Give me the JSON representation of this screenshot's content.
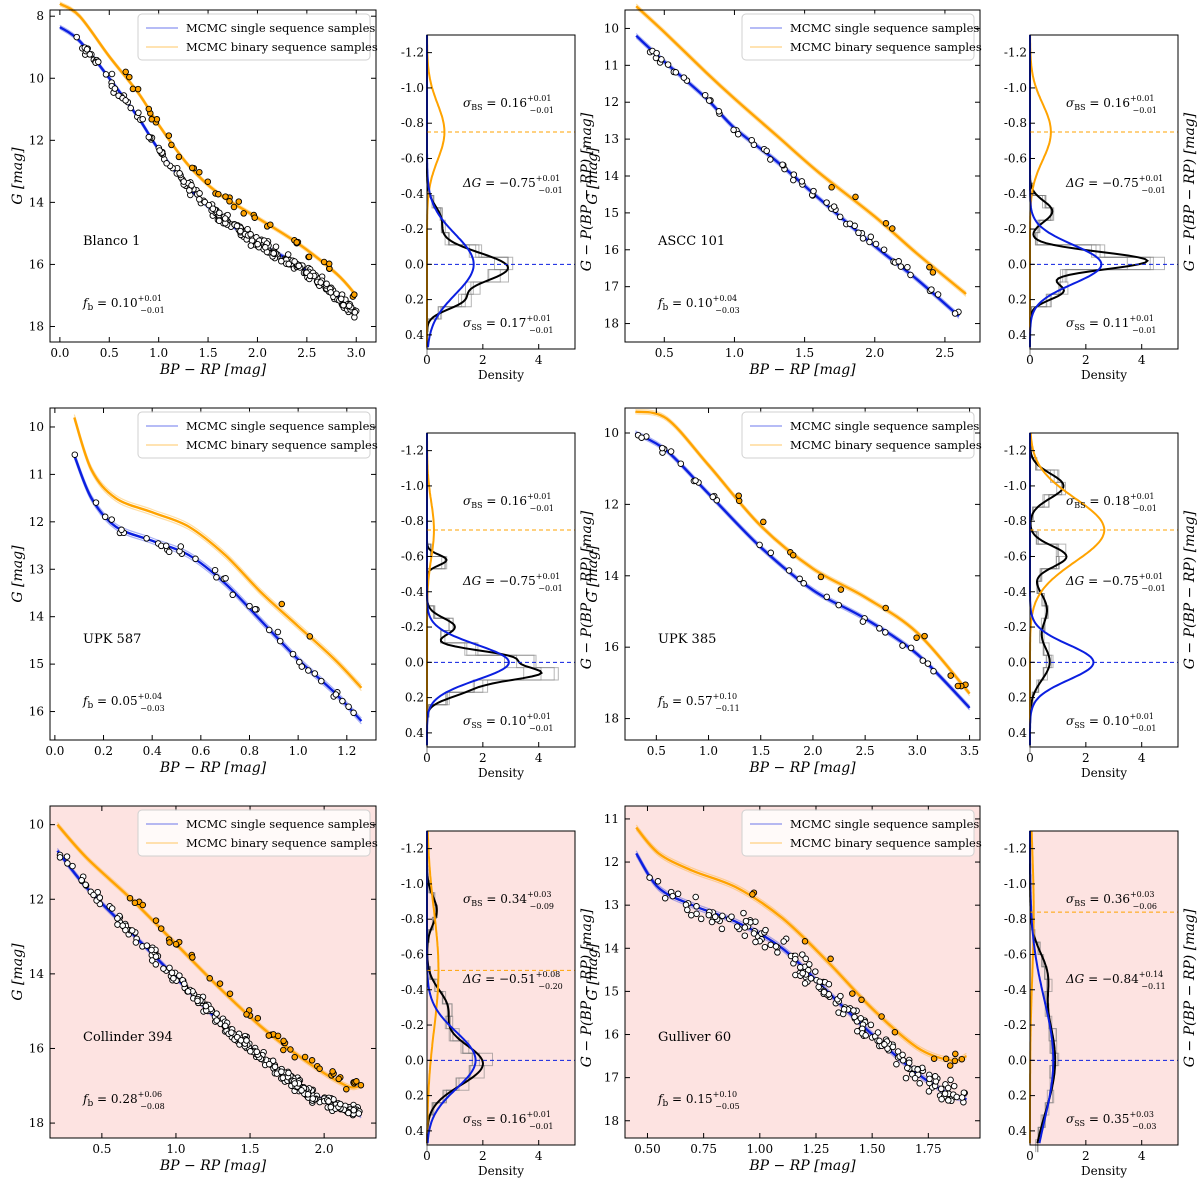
{
  "legend": {
    "single": "MCMC single sequence samples",
    "binary": "MCMC binary sequence samples"
  },
  "axis_labels": {
    "cmd_x": "BP − RP [mag]",
    "cmd_y": "G [mag]",
    "res_x": "Density",
    "res_y": "G − P(BP − RP) [mag]"
  },
  "colors": {
    "single": "#0b1fe0",
    "binary": "#ffa300",
    "highlight_bg": "#fde3e1",
    "data_curve": "#000000"
  },
  "chart_data": [
    {
      "type": "scatter",
      "name": "Blanco 1",
      "highlighted": false,
      "fb": "0.10",
      "fb_up": "+0.01",
      "fb_lo": "−0.01",
      "sigma_bs": "0.16",
      "sigma_bs_up": "+0.01",
      "sigma_bs_lo": "−0.01",
      "delta_g": "−0.75",
      "delta_g_up": "+0.01",
      "delta_g_lo": "−0.01",
      "sigma_ss": "0.17",
      "sigma_ss_up": "+0.01",
      "sigma_ss_lo": "−0.01",
      "xlim": [
        -0.1,
        3.2
      ],
      "ylim": [
        18.5,
        7.8
      ],
      "xticks": [
        "0.0",
        "0.5",
        "1.0",
        "1.5",
        "2.0",
        "2.5",
        "3.0"
      ],
      "yticks": [
        "8",
        "10",
        "12",
        "14",
        "16",
        "18"
      ],
      "single_curve": [
        [
          0.0,
          8.35
        ],
        [
          0.2,
          8.8
        ],
        [
          0.5,
          10.0
        ],
        [
          0.8,
          11.3
        ],
        [
          1.0,
          12.3
        ],
        [
          1.3,
          13.5
        ],
        [
          1.6,
          14.4
        ],
        [
          2.0,
          15.3
        ],
        [
          2.4,
          16.0
        ],
        [
          2.8,
          17.0
        ],
        [
          3.0,
          17.6
        ]
      ],
      "binary_curve": [
        [
          0.0,
          7.6
        ],
        [
          0.2,
          8.0
        ],
        [
          0.5,
          9.3
        ],
        [
          0.8,
          10.5
        ],
        [
          1.0,
          11.5
        ],
        [
          1.3,
          12.8
        ],
        [
          1.6,
          13.7
        ],
        [
          2.0,
          14.5
        ],
        [
          2.4,
          15.3
        ],
        [
          2.8,
          16.3
        ],
        [
          3.0,
          17.0
        ]
      ],
      "res_ylim": [
        0.48,
        -1.3
      ],
      "res_yticks": [
        "-1.2",
        "-1.0",
        "-0.8",
        "-0.6",
        "-0.4",
        "-0.2",
        "0.0",
        "0.2",
        "0.4"
      ],
      "res_xlim": [
        0,
        5.3
      ],
      "res_xticks": [
        "0",
        "2",
        "4"
      ],
      "binary_offset": -0.75,
      "single_sigma": 0.17,
      "binary_sigma": 0.16,
      "binary_amp": 0.25,
      "black_peaks": [
        [
          0.02,
          0.09,
          2.9
        ],
        [
          0.21,
          0.05,
          1.0
        ],
        [
          -0.25,
          0.08,
          0.5
        ]
      ],
      "n_points": 260,
      "n_binary": 40,
      "seed": 11
    },
    {
      "type": "scatter",
      "name": "ASCC 101",
      "highlighted": false,
      "fb": "0.10",
      "fb_up": "+0.04",
      "fb_lo": "−0.03",
      "sigma_bs": "0.16",
      "sigma_bs_up": "+0.01",
      "sigma_bs_lo": "−0.01",
      "delta_g": "−0.75",
      "delta_g_up": "+0.01",
      "delta_g_lo": "−0.01",
      "sigma_ss": "0.11",
      "sigma_ss_up": "+0.01",
      "sigma_ss_lo": "−0.01",
      "xlim": [
        0.22,
        2.75
      ],
      "ylim": [
        18.5,
        9.5
      ],
      "xticks": [
        "0.5",
        "1.0",
        "1.5",
        "2.0",
        "2.5"
      ],
      "yticks": [
        "10",
        "11",
        "12",
        "13",
        "14",
        "15",
        "16",
        "17",
        "18"
      ],
      "single_curve": [
        [
          0.3,
          10.2
        ],
        [
          0.5,
          10.9
        ],
        [
          0.8,
          11.9
        ],
        [
          1.0,
          12.7
        ],
        [
          1.3,
          13.6
        ],
        [
          1.6,
          14.6
        ],
        [
          2.0,
          15.9
        ],
        [
          2.3,
          16.8
        ],
        [
          2.6,
          17.8
        ]
      ],
      "binary_curve": [
        [
          0.3,
          9.4
        ],
        [
          0.5,
          10.1
        ],
        [
          0.8,
          11.2
        ],
        [
          1.0,
          11.9
        ],
        [
          1.3,
          12.9
        ],
        [
          1.6,
          13.9
        ],
        [
          2.0,
          15.1
        ],
        [
          2.3,
          16.1
        ],
        [
          2.65,
          17.2
        ]
      ],
      "res_ylim": [
        0.48,
        -1.3
      ],
      "res_yticks": [
        "-1.2",
        "-1.0",
        "-0.8",
        "-0.6",
        "-0.4",
        "-0.2",
        "0.0",
        "0.2",
        "0.4"
      ],
      "res_xlim": [
        0,
        5.3
      ],
      "res_xticks": [
        "0",
        "2",
        "4"
      ],
      "binary_offset": -0.75,
      "single_sigma": 0.11,
      "binary_sigma": 0.16,
      "binary_amp": 0.3,
      "black_peaks": [
        [
          -0.02,
          0.05,
          4.2
        ],
        [
          0.15,
          0.05,
          1.2
        ],
        [
          -0.3,
          0.06,
          0.8
        ]
      ],
      "n_points": 60,
      "n_binary": 6,
      "seed": 23
    },
    {
      "type": "scatter",
      "name": "UPK 587",
      "highlighted": false,
      "fb": "0.05",
      "fb_up": "+0.04",
      "fb_lo": "−0.03",
      "sigma_bs": "0.16",
      "sigma_bs_up": "+0.01",
      "sigma_bs_lo": "−0.01",
      "delta_g": "−0.75",
      "delta_g_up": "+0.01",
      "delta_g_lo": "−0.01",
      "sigma_ss": "0.10",
      "sigma_ss_up": "+0.01",
      "sigma_ss_lo": "−0.01",
      "xlim": [
        -0.02,
        1.32
      ],
      "ylim": [
        16.6,
        9.6
      ],
      "xticks": [
        "0.0",
        "0.2",
        "0.4",
        "0.6",
        "0.8",
        "1.0",
        "1.2"
      ],
      "yticks": [
        "10",
        "11",
        "12",
        "13",
        "14",
        "15",
        "16"
      ],
      "single_curve": [
        [
          0.08,
          10.6
        ],
        [
          0.15,
          11.5
        ],
        [
          0.25,
          12.1
        ],
        [
          0.4,
          12.4
        ],
        [
          0.55,
          12.7
        ],
        [
          0.7,
          13.3
        ],
        [
          0.85,
          14.1
        ],
        [
          1.0,
          14.9
        ],
        [
          1.15,
          15.6
        ],
        [
          1.26,
          16.2
        ]
      ],
      "binary_curve": [
        [
          0.08,
          9.8
        ],
        [
          0.15,
          10.9
        ],
        [
          0.25,
          11.5
        ],
        [
          0.4,
          11.8
        ],
        [
          0.55,
          12.1
        ],
        [
          0.7,
          12.7
        ],
        [
          0.85,
          13.5
        ],
        [
          1.0,
          14.2
        ],
        [
          1.15,
          14.9
        ],
        [
          1.26,
          15.5
        ]
      ],
      "res_ylim": [
        0.48,
        -1.3
      ],
      "res_yticks": [
        "-1.2",
        "-1.0",
        "-0.8",
        "-0.6",
        "-0.4",
        "-0.2",
        "0.0",
        "0.2",
        "0.4"
      ],
      "res_xlim": [
        0,
        5.3
      ],
      "res_xticks": [
        "0",
        "2",
        "4"
      ],
      "binary_offset": -0.75,
      "single_sigma": 0.1,
      "binary_sigma": 0.16,
      "binary_amp": 0.1,
      "black_peaks": [
        [
          -0.03,
          0.04,
          2.8
        ],
        [
          0.06,
          0.04,
          3.6
        ],
        [
          0.15,
          0.05,
          1.4
        ],
        [
          -0.2,
          0.05,
          1.0
        ],
        [
          -0.58,
          0.03,
          0.7
        ]
      ],
      "n_points": 40,
      "n_binary": 2,
      "seed": 37
    },
    {
      "type": "scatter",
      "name": "UPK 385",
      "highlighted": false,
      "fb": "0.57",
      "fb_up": "+0.10",
      "fb_lo": "−0.11",
      "sigma_bs": "0.18",
      "sigma_bs_up": "+0.01",
      "sigma_bs_lo": "−0.01",
      "delta_g": "−0.75",
      "delta_g_up": "+0.01",
      "delta_g_lo": "−0.01",
      "sigma_ss": "0.10",
      "sigma_ss_up": "+0.01",
      "sigma_ss_lo": "−0.01",
      "xlim": [
        0.2,
        3.6
      ],
      "ylim": [
        18.6,
        9.3
      ],
      "xticks": [
        "0.5",
        "1.0",
        "1.5",
        "2.0",
        "2.5",
        "3.0",
        "3.5"
      ],
      "yticks": [
        "10",
        "12",
        "14",
        "16",
        "18"
      ],
      "single_curve": [
        [
          0.3,
          10.0
        ],
        [
          0.6,
          10.5
        ],
        [
          1.0,
          11.7
        ],
        [
          1.5,
          13.2
        ],
        [
          2.0,
          14.4
        ],
        [
          2.5,
          15.2
        ],
        [
          3.0,
          16.2
        ],
        [
          3.5,
          17.7
        ]
      ],
      "binary_curve": [
        [
          0.3,
          9.4
        ],
        [
          0.6,
          9.6
        ],
        [
          1.0,
          10.9
        ],
        [
          1.5,
          12.6
        ],
        [
          2.0,
          13.8
        ],
        [
          2.5,
          14.6
        ],
        [
          3.0,
          15.6
        ],
        [
          3.5,
          17.3
        ]
      ],
      "res_ylim": [
        0.48,
        -1.3
      ],
      "res_yticks": [
        "-1.2",
        "-1.0",
        "-0.8",
        "-0.6",
        "-0.4",
        "-0.2",
        "0.0",
        "0.2",
        "0.4"
      ],
      "res_xlim": [
        0,
        5.3
      ],
      "res_xticks": [
        "0",
        "2",
        "4"
      ],
      "binary_offset": -0.75,
      "single_sigma": 0.1,
      "binary_sigma": 0.18,
      "binary_amp": 1.2,
      "black_peaks": [
        [
          -0.6,
          0.06,
          1.3
        ],
        [
          -1.0,
          0.07,
          1.2
        ],
        [
          0.0,
          0.1,
          0.7
        ],
        [
          -0.3,
          0.1,
          0.6
        ]
      ],
      "n_points": 30,
      "n_binary": 14,
      "seed": 53
    },
    {
      "type": "scatter",
      "name": "Collinder 394",
      "highlighted": true,
      "fb": "0.28",
      "fb_up": "+0.06",
      "fb_lo": "−0.08",
      "sigma_bs": "0.34",
      "sigma_bs_up": "+0.03",
      "sigma_bs_lo": "−0.09",
      "delta_g": "−0.51",
      "delta_g_up": "+0.08",
      "delta_g_lo": "−0.20",
      "sigma_ss": "0.16",
      "sigma_ss_up": "+0.01",
      "sigma_ss_lo": "−0.01",
      "xlim": [
        0.15,
        2.35
      ],
      "ylim": [
        18.4,
        9.5
      ],
      "xticks": [
        "0.5",
        "1.0",
        "1.5",
        "2.0"
      ],
      "yticks": [
        "10",
        "12",
        "14",
        "16",
        "18"
      ],
      "single_curve": [
        [
          0.2,
          10.7
        ],
        [
          0.4,
          11.7
        ],
        [
          0.7,
          12.9
        ],
        [
          1.0,
          14.1
        ],
        [
          1.3,
          15.3
        ],
        [
          1.6,
          16.3
        ],
        [
          1.9,
          17.2
        ],
        [
          2.2,
          17.7
        ],
        [
          2.25,
          17.8
        ]
      ],
      "binary_curve": [
        [
          0.2,
          10.0
        ],
        [
          0.4,
          10.9
        ],
        [
          0.7,
          12.0
        ],
        [
          1.0,
          13.2
        ],
        [
          1.3,
          14.4
        ],
        [
          1.6,
          15.5
        ],
        [
          1.9,
          16.4
        ],
        [
          2.15,
          17.0
        ],
        [
          2.25,
          17.0
        ]
      ],
      "res_ylim": [
        0.48,
        -1.3
      ],
      "res_yticks": [
        "-1.2",
        "-1.0",
        "-0.8",
        "-0.6",
        "-0.4",
        "-0.2",
        "0.0",
        "0.2",
        "0.4"
      ],
      "res_xlim": [
        0,
        5.3
      ],
      "res_xticks": [
        "0",
        "2",
        "4"
      ],
      "binary_offset": -0.51,
      "single_sigma": 0.16,
      "binary_sigma": 0.34,
      "binary_amp": 0.35,
      "black_peaks": [
        [
          0.02,
          0.12,
          2.0
        ],
        [
          -0.3,
          0.1,
          0.7
        ],
        [
          -0.85,
          0.08,
          0.35
        ]
      ],
      "n_points": 300,
      "n_binary": 45,
      "seed": 71
    },
    {
      "type": "scatter",
      "name": "Gulliver 60",
      "highlighted": true,
      "fb": "0.15",
      "fb_up": "+0.10",
      "fb_lo": "−0.05",
      "sigma_bs": "0.36",
      "sigma_bs_up": "+0.03",
      "sigma_bs_lo": "−0.06",
      "delta_g": "−0.84",
      "delta_g_up": "+0.14",
      "delta_g_lo": "−0.11",
      "sigma_ss": "0.35",
      "sigma_ss_up": "+0.03",
      "sigma_ss_lo": "−0.03",
      "xlim": [
        0.4,
        1.98
      ],
      "ylim": [
        18.4,
        10.7
      ],
      "xticks": [
        "0.50",
        "0.75",
        "1.00",
        "1.25",
        "1.50",
        "1.75"
      ],
      "yticks": [
        "11",
        "12",
        "13",
        "14",
        "15",
        "16",
        "17",
        "18"
      ],
      "single_curve": [
        [
          0.45,
          11.8
        ],
        [
          0.55,
          12.6
        ],
        [
          0.7,
          13.0
        ],
        [
          0.9,
          13.4
        ],
        [
          1.1,
          14.0
        ],
        [
          1.3,
          15.0
        ],
        [
          1.5,
          16.0
        ],
        [
          1.7,
          16.9
        ],
        [
          1.85,
          17.4
        ],
        [
          1.92,
          17.5
        ]
      ],
      "binary_curve": [
        [
          0.45,
          11.2
        ],
        [
          0.55,
          11.8
        ],
        [
          0.7,
          12.2
        ],
        [
          0.9,
          12.6
        ],
        [
          1.1,
          13.3
        ],
        [
          1.3,
          14.3
        ],
        [
          1.5,
          15.4
        ],
        [
          1.7,
          16.3
        ],
        [
          1.85,
          16.6
        ],
        [
          1.92,
          16.5
        ]
      ],
      "res_ylim": [
        0.48,
        -1.3
      ],
      "res_yticks": [
        "-1.2",
        "-1.0",
        "-0.8",
        "-0.6",
        "-0.4",
        "-0.2",
        "0.0",
        "0.2",
        "0.4"
      ],
      "res_xlim": [
        0,
        5.3
      ],
      "res_xticks": [
        "0",
        "2",
        "4"
      ],
      "binary_offset": -0.84,
      "single_sigma": 0.35,
      "binary_sigma": 0.36,
      "binary_amp": 0.12,
      "black_peaks": [
        [
          0.0,
          0.3,
          0.9
        ],
        [
          -0.5,
          0.12,
          0.4
        ]
      ],
      "n_points": 180,
      "n_binary": 14,
      "seed": 89
    }
  ]
}
